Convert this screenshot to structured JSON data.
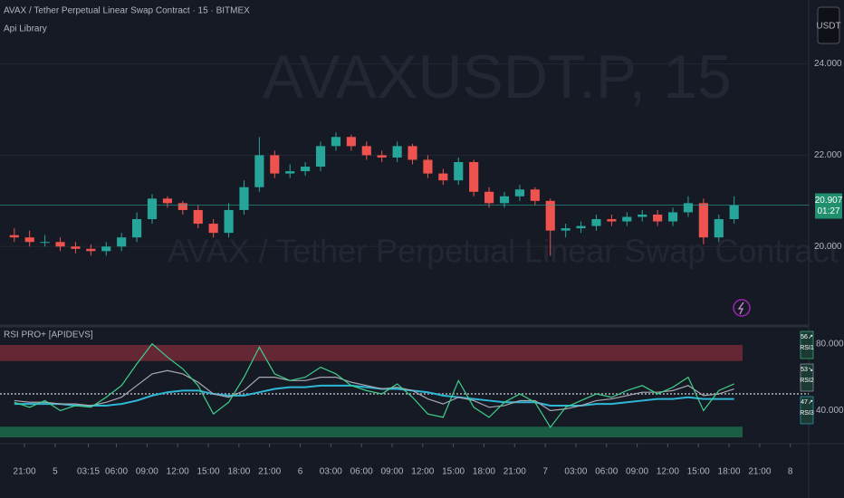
{
  "chart_data": [
    {
      "type": "candlestick",
      "title": "AVAX / Tether Perpetual Linear Swap Contract · 15 · BITMEX",
      "subtitle": "Api Library",
      "watermark": "AVAXUSDT.P, 15",
      "watermark_subtitle": "AVAX / Tether Perpetual Linear Swap Contract",
      "currency": "USDT",
      "x": [
        20,
        21.5,
        23,
        24.5,
        26,
        27.5,
        29,
        30.5,
        32,
        33.5,
        35,
        36.5,
        38,
        39.5,
        41,
        42.5,
        44,
        45.5,
        47,
        48.5,
        50,
        51.5,
        53,
        54.5,
        56,
        57.5,
        59,
        60.5,
        62,
        63.5,
        65,
        66.5,
        68,
        69.5,
        71,
        72.5,
        74,
        75.5,
        77,
        78.5,
        80,
        81.5,
        83,
        84.5,
        86,
        87.5,
        89,
        90.5
      ],
      "open": [
        20.25,
        20.2,
        20.1,
        20.1,
        20.0,
        19.95,
        19.9,
        20.0,
        20.2,
        20.6,
        21.05,
        20.95,
        20.8,
        20.5,
        20.3,
        20.8,
        21.3,
        22.0,
        21.6,
        21.65,
        21.75,
        22.2,
        22.4,
        22.2,
        22.0,
        21.95,
        22.2,
        21.9,
        21.6,
        21.45,
        21.85,
        21.2,
        20.95,
        21.1,
        21.25,
        21.0,
        20.35,
        20.4,
        20.45,
        20.6,
        20.55,
        20.65,
        20.7,
        20.55,
        20.75,
        20.95,
        20.2,
        20.6
      ],
      "high": [
        20.4,
        20.35,
        20.25,
        20.2,
        20.1,
        20.05,
        20.1,
        20.3,
        20.75,
        21.15,
        21.1,
        21.0,
        20.9,
        20.6,
        20.95,
        21.45,
        22.4,
        22.1,
        21.8,
        21.85,
        22.3,
        22.5,
        22.45,
        22.3,
        22.1,
        22.3,
        22.25,
        22.0,
        21.7,
        21.95,
        21.9,
        21.3,
        21.2,
        21.35,
        21.3,
        21.05,
        20.5,
        20.55,
        20.7,
        20.7,
        20.75,
        20.8,
        20.8,
        20.85,
        21.1,
        21.05,
        20.7,
        21.1
      ],
      "low": [
        20.1,
        20.0,
        20.0,
        19.9,
        19.85,
        19.8,
        19.8,
        19.9,
        20.1,
        20.5,
        20.85,
        20.7,
        20.4,
        20.2,
        20.2,
        20.7,
        21.2,
        21.5,
        21.5,
        21.55,
        21.65,
        22.1,
        22.1,
        21.9,
        21.85,
        21.85,
        21.8,
        21.5,
        21.35,
        21.35,
        21.1,
        20.85,
        20.85,
        21.0,
        20.9,
        19.8,
        20.2,
        20.3,
        20.35,
        20.45,
        20.45,
        20.55,
        20.45,
        20.45,
        20.65,
        20.05,
        20.1,
        20.5
      ],
      "close": [
        20.2,
        20.1,
        20.1,
        20.0,
        19.95,
        19.9,
        20.0,
        20.2,
        20.6,
        21.05,
        20.95,
        20.8,
        20.5,
        20.3,
        20.8,
        21.3,
        22.0,
        21.6,
        21.65,
        21.75,
        22.2,
        22.4,
        22.2,
        22.0,
        21.95,
        22.2,
        21.9,
        21.6,
        21.45,
        21.85,
        21.2,
        20.95,
        21.1,
        21.25,
        21.0,
        20.35,
        20.4,
        20.45,
        20.6,
        20.55,
        20.65,
        20.7,
        20.55,
        20.75,
        20.95,
        20.2,
        20.6,
        20.9
      ],
      "up_color": "#26a69a",
      "down_color": "#ef5350",
      "xlim": [
        18.6,
        97.8
      ],
      "ylim": [
        18.3,
        25.4
      ],
      "yticks": [
        {
          "value": 20,
          "label": "20.000"
        },
        {
          "value": 22,
          "label": "22.000"
        },
        {
          "value": 24,
          "label": "24.000"
        }
      ],
      "last_price": {
        "value": 20.907,
        "label": "20.907"
      },
      "countdown": "01:27"
    },
    {
      "type": "line",
      "title": "RSI PRO+ [APIDEVS]",
      "x": [
        20,
        21.5,
        23,
        24.5,
        26,
        27.5,
        29,
        30.5,
        32,
        33.5,
        35,
        36.5,
        38,
        39.5,
        41,
        42.5,
        44,
        45.5,
        47,
        48.5,
        50,
        51.5,
        53,
        54.5,
        56,
        57.5,
        59,
        60.5,
        62,
        63.5,
        65,
        66.5,
        68,
        69.5,
        71,
        72.5,
        74,
        75.5,
        77,
        78.5,
        80,
        81.5,
        83,
        84.5,
        86,
        87.5,
        89,
        90.5
      ],
      "series": [
        {
          "name": "RSI1",
          "color": "#3fd08a",
          "trend": "↗",
          "values": [
            45,
            42,
            46,
            40,
            43,
            42,
            48,
            55,
            68,
            80,
            72,
            65,
            55,
            38,
            45,
            60,
            78,
            62,
            58,
            60,
            66,
            62,
            55,
            52,
            50,
            56,
            48,
            38,
            36,
            58,
            42,
            36,
            45,
            50,
            45,
            30,
            42,
            46,
            50,
            48,
            52,
            55,
            50,
            54,
            60,
            40,
            52,
            56
          ]
        },
        {
          "name": "RSI2",
          "color": "#a9a9b3",
          "trend": "↘",
          "values": [
            46,
            45,
            45,
            44,
            44,
            43,
            45,
            48,
            55,
            62,
            64,
            62,
            57,
            50,
            48,
            52,
            60,
            60,
            58,
            58,
            60,
            60,
            57,
            55,
            53,
            54,
            52,
            47,
            44,
            48,
            46,
            42,
            43,
            46,
            46,
            40,
            41,
            43,
            46,
            47,
            49,
            51,
            51,
            52,
            55,
            49,
            50,
            53
          ]
        },
        {
          "name": "RSI3",
          "color": "#2fb7d6",
          "trend": "↗",
          "values": [
            44,
            44,
            44,
            44,
            43,
            43,
            43,
            44,
            46,
            49,
            51,
            52,
            52,
            50,
            49,
            49,
            51,
            53,
            54,
            54,
            55,
            55,
            55,
            54,
            53,
            53,
            52,
            51,
            49,
            48,
            47,
            46,
            45,
            45,
            45,
            43,
            43,
            43,
            44,
            44,
            45,
            46,
            47,
            47,
            48,
            47,
            47,
            47
          ]
        }
      ],
      "bands": [
        {
          "from": 69.7,
          "to": 79.3,
          "color": "#7b2a38"
        },
        {
          "from": 24,
          "to": 30.4,
          "color": "#1e6e4e"
        }
      ],
      "midline": 50,
      "xlim": [
        18.6,
        97.8
      ],
      "ylim": [
        21.3,
        89.6
      ],
      "yticks": [
        {
          "value": 40,
          "label": "40.000"
        },
        {
          "value": 80,
          "label": "80.000"
        }
      ],
      "xticks": [
        {
          "value": 21,
          "label": "21:00"
        },
        {
          "value": 24,
          "label": "5"
        },
        {
          "value": 27.25,
          "label": "03:15"
        },
        {
          "value": 30,
          "label": "06:00"
        },
        {
          "value": 33,
          "label": "09:00"
        },
        {
          "value": 36,
          "label": "12:00"
        },
        {
          "value": 39,
          "label": "15:00"
        },
        {
          "value": 42,
          "label": "18:00"
        },
        {
          "value": 45,
          "label": "21:00"
        },
        {
          "value": 48,
          "label": "6"
        },
        {
          "value": 51,
          "label": "03:00"
        },
        {
          "value": 54,
          "label": "06:00"
        },
        {
          "value": 57,
          "label": "09:00"
        },
        {
          "value": 60,
          "label": "12:00"
        },
        {
          "value": 63,
          "label": "15:00"
        },
        {
          "value": 66,
          "label": "18:00"
        },
        {
          "value": 69,
          "label": "21:00"
        },
        {
          "value": 72,
          "label": "7"
        },
        {
          "value": 75,
          "label": "03:00"
        },
        {
          "value": 78,
          "label": "06:00"
        },
        {
          "value": 81,
          "label": "09:00"
        },
        {
          "value": 84,
          "label": "12:00"
        },
        {
          "value": 87,
          "label": "15:00"
        },
        {
          "value": 90,
          "label": "18:00"
        },
        {
          "value": 93,
          "label": "21:00"
        },
        {
          "value": 96,
          "label": "8"
        }
      ]
    }
  ]
}
